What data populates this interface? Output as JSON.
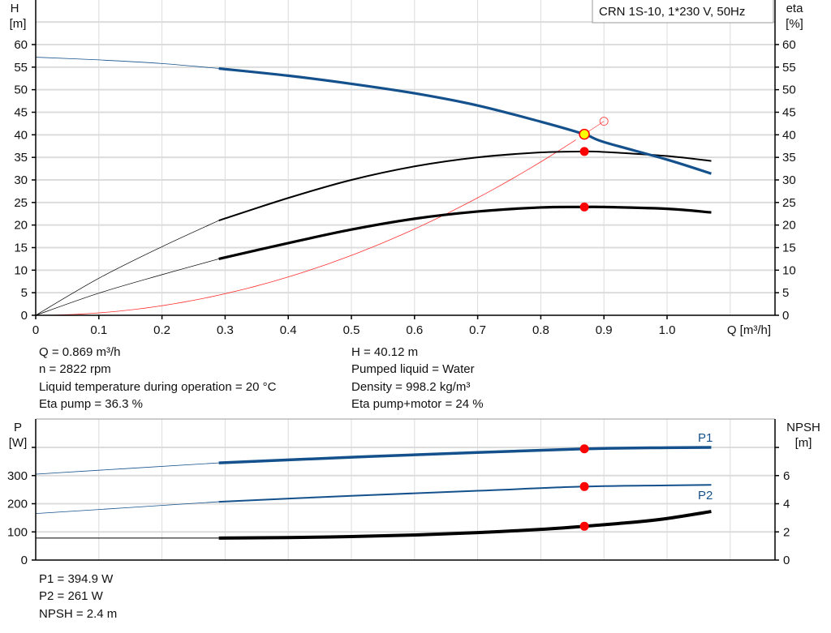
{
  "legend_box": {
    "title": "CRN 1S-10, 1*230 V, 50Hz"
  },
  "readouts_top": {
    "left": [
      "Q = 0.869 m³/h",
      "n = 2822 rpm",
      "Liquid temperature during operation = 20 °C",
      "Eta pump = 36.3 %"
    ],
    "right": [
      "H = 40.12 m",
      "Pumped liquid = Water",
      "Density = 998.2 kg/m³",
      "Eta pump+motor = 24 %"
    ]
  },
  "readouts_bottom": [
    "P1 = 394.9 W",
    "P2 = 261 W",
    "NPSH = 2.4 m"
  ],
  "colors": {
    "head": "#14518c",
    "eta": "#000000",
    "system": "#ff3030",
    "point": "#ff0000",
    "duty_fill": "#ffff00",
    "grid": "#dcdcdc"
  },
  "chart_data": [
    {
      "type": "line",
      "xlabel": "Q [m³/h]",
      "ylabel_left": {
        "name": "H",
        "unit": "[m]"
      },
      "ylabel_right": {
        "name": "eta",
        "unit": "[%]"
      },
      "xlim": [
        0,
        1.1
      ],
      "ylim": [
        0,
        65
      ],
      "x_ticks": [
        "0",
        "0.1",
        "0.2",
        "0.3",
        "0.4",
        "0.5",
        "0.6",
        "0.7",
        "0.8",
        "0.9",
        "1.0"
      ],
      "y_ticks": [
        "0",
        "5",
        "10",
        "15",
        "20",
        "25",
        "30",
        "35",
        "40",
        "45",
        "50",
        "55",
        "60"
      ],
      "grid": true,
      "operating_range_start": 0.29,
      "series": [
        {
          "key": "head",
          "x": [
            0,
            0.1,
            0.2,
            0.29,
            0.4,
            0.5,
            0.6,
            0.7,
            0.8,
            0.869,
            0.9,
            1.0,
            1.07
          ],
          "y": [
            57.2,
            56.6,
            55.8,
            54.7,
            53.1,
            51.3,
            49.2,
            46.5,
            42.9,
            40.12,
            38.4,
            34.5,
            31.4
          ]
        },
        {
          "key": "eta_pump",
          "x": [
            0,
            0.1,
            0.2,
            0.29,
            0.4,
            0.5,
            0.6,
            0.7,
            0.8,
            0.869,
            0.9,
            1.0,
            1.07
          ],
          "y": [
            0,
            8.2,
            15.2,
            21,
            26,
            30,
            33,
            35,
            36.1,
            36.3,
            36.2,
            35.3,
            34.2
          ]
        },
        {
          "key": "eta_total",
          "x": [
            0,
            0.1,
            0.2,
            0.29,
            0.4,
            0.5,
            0.6,
            0.7,
            0.8,
            0.869,
            0.9,
            1.0,
            1.07
          ],
          "y": [
            0,
            4.9,
            9,
            12.5,
            16,
            19,
            21.4,
            23,
            23.9,
            24,
            24,
            23.6,
            22.8
          ]
        },
        {
          "key": "system",
          "x": [
            0,
            0.1,
            0.2,
            0.3,
            0.4,
            0.5,
            0.6,
            0.7,
            0.8,
            0.869
          ],
          "y": [
            0,
            0.53,
            2.12,
            4.78,
            8.5,
            13.3,
            19.1,
            26,
            34,
            40.12
          ]
        }
      ],
      "points": [
        {
          "key": "duty",
          "x": 0.869,
          "y": 40.12
        },
        {
          "key": "eta_pump",
          "x": 0.869,
          "y": 36.3
        },
        {
          "key": "eta_total",
          "x": 0.869,
          "y": 24
        },
        {
          "key": "requested",
          "x": 0.9,
          "y": 43
        }
      ]
    },
    {
      "type": "line",
      "ylabel_left": {
        "name": "P",
        "unit": "[W]"
      },
      "ylabel_right": {
        "name": "NPSH",
        "unit": "[m]"
      },
      "xlim": [
        0,
        1.1
      ],
      "ylim_left": [
        0,
        480
      ],
      "ylim_right": [
        0,
        9.6
      ],
      "y_ticks_left": [
        "0",
        "100",
        "200",
        "300"
      ],
      "y_ticks_right": [
        "0",
        "2",
        "4",
        "6"
      ],
      "grid": true,
      "operating_range_start": 0.29,
      "series": [
        {
          "key": "P1",
          "name": "P1",
          "axis": "left",
          "x": [
            0,
            0.29,
            0.5,
            0.7,
            0.869,
            1.0,
            1.07
          ],
          "y": [
            305,
            345,
            365,
            382,
            394.9,
            399,
            400
          ]
        },
        {
          "key": "P2",
          "name": "P2",
          "axis": "left",
          "x": [
            0,
            0.29,
            0.5,
            0.7,
            0.869,
            1.0,
            1.07
          ],
          "y": [
            165,
            207,
            228,
            246,
            261,
            265,
            267
          ]
        },
        {
          "key": "NPSH",
          "axis": "right",
          "x": [
            0,
            0.29,
            0.4,
            0.5,
            0.6,
            0.7,
            0.8,
            0.869,
            0.95,
            1.0,
            1.07
          ],
          "y": [
            1.56,
            1.56,
            1.6,
            1.67,
            1.78,
            1.95,
            2.18,
            2.4,
            2.7,
            2.95,
            3.45
          ]
        }
      ],
      "points": [
        {
          "key": "P1",
          "x": 0.869,
          "y": 394.9
        },
        {
          "key": "P2",
          "x": 0.869,
          "y": 261
        },
        {
          "key": "NPSH",
          "x": 0.869,
          "y": 2.4
        }
      ]
    }
  ]
}
